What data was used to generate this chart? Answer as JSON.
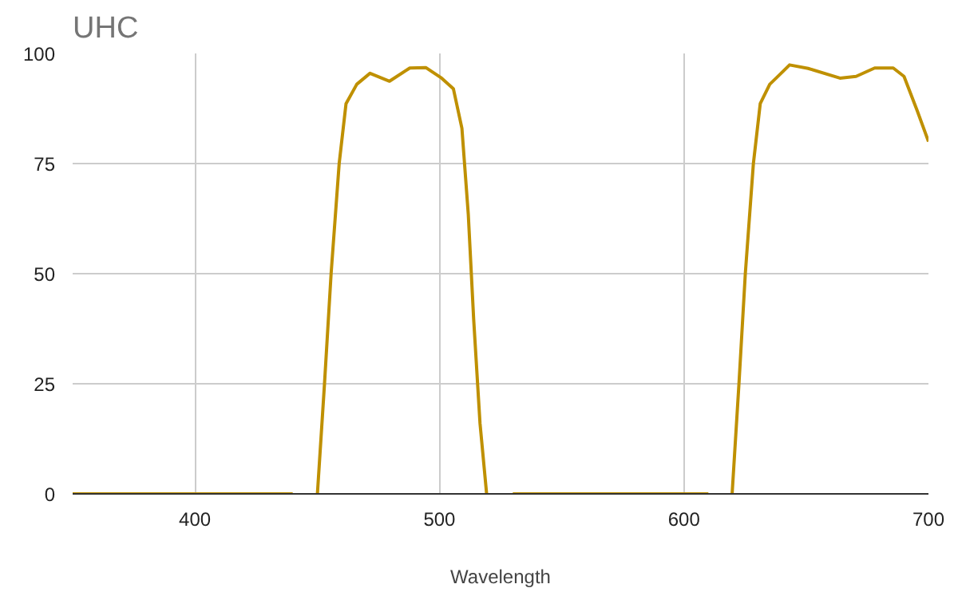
{
  "chart_data": {
    "type": "line",
    "title": "UHC",
    "xlabel": "Wavelength",
    "xlim": [
      350,
      700
    ],
    "xticks": [
      400,
      500,
      600,
      700
    ],
    "ylim": [
      0,
      100
    ],
    "yticks": [
      0,
      25,
      50,
      75,
      100
    ],
    "grid": true,
    "line_style": "solid",
    "series": [
      {
        "color": "#bf9000",
        "x": [
          350,
          380,
          410,
          440,
          445,
          450.1,
          453,
          455.7,
          459,
          461.8,
          466.2,
          471.6,
          479.6,
          487.9,
          494.4,
          500.9,
          505.7,
          509.2,
          511.8,
          514,
          516.6,
          519.3,
          525,
          530,
          560,
          590,
          610,
          615,
          619.7,
          622.5,
          625.1,
          628.4,
          631.2,
          635.1,
          638.8,
          643.2,
          650.8,
          663.8,
          670.4,
          678,
          685.6,
          690,
          695.4,
          700
        ],
        "values": [
          0,
          0,
          0,
          0,
          null,
          0,
          25,
          50,
          75,
          88.6,
          93,
          95.5,
          93.7,
          96.7,
          96.8,
          94.4,
          92,
          83,
          63.5,
          39.7,
          16,
          0,
          null,
          0,
          0,
          0,
          0,
          null,
          0,
          25,
          50,
          75,
          88.6,
          93,
          95,
          97.4,
          96.6,
          94.4,
          94.8,
          96.7,
          96.7,
          94.8,
          87,
          80
        ]
      }
    ]
  }
}
